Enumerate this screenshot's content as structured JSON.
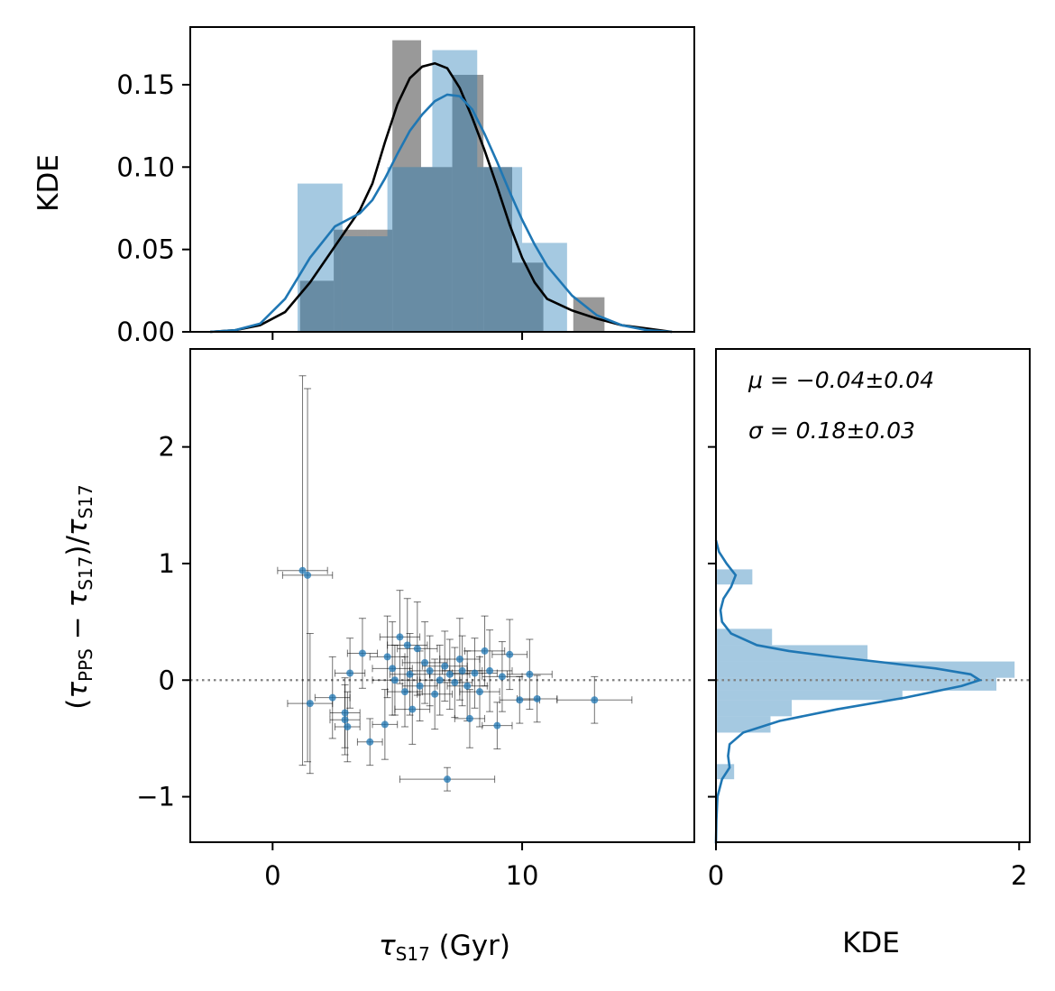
{
  "chart_data": [
    {
      "panel": "top-marginal",
      "type": "bar",
      "ylabel": "KDE",
      "xlim": [
        -3.3,
        16.9
      ],
      "ylim": [
        0,
        0.185
      ],
      "yticks": [
        "0.00",
        "0.05",
        "0.10",
        "0.15"
      ],
      "ytick_values": [
        0.0,
        0.05,
        0.1,
        0.15
      ],
      "xtick_values": [
        0,
        10
      ],
      "series": [
        {
          "color": "#808080",
          "opacity": 0.8,
          "bins": [
            {
              "x0": 1.1,
              "x1": 2.45,
              "y": 0.031
            },
            {
              "x0": 2.45,
              "x1": 3.8,
              "y": 0.062
            },
            {
              "x0": 3.8,
              "x1": 4.8,
              "y": 0.062
            },
            {
              "x0": 4.8,
              "x1": 5.95,
              "y": 0.177
            },
            {
              "x0": 5.95,
              "x1": 7.2,
              "y": 0.1
            },
            {
              "x0": 7.2,
              "x1": 8.45,
              "y": 0.156
            },
            {
              "x0": 8.45,
              "x1": 9.6,
              "y": 0.1
            },
            {
              "x0": 9.6,
              "x1": 10.85,
              "y": 0.042
            },
            {
              "x0": 10.85,
              "x1": 12.05,
              "y": 0.0
            },
            {
              "x0": 12.05,
              "x1": 13.3,
              "y": 0.021
            }
          ]
        },
        {
          "color": "#1f77b4",
          "opacity": 0.4,
          "bins": [
            {
              "x0": 1.0,
              "x1": 2.8,
              "y": 0.09
            },
            {
              "x0": 2.8,
              "x1": 4.6,
              "y": 0.058
            },
            {
              "x0": 4.6,
              "x1": 6.4,
              "y": 0.1
            },
            {
              "x0": 6.4,
              "x1": 8.2,
              "y": 0.171
            },
            {
              "x0": 8.2,
              "x1": 10.0,
              "y": 0.1
            },
            {
              "x0": 10.0,
              "x1": 11.8,
              "y": 0.054
            }
          ]
        }
      ],
      "kde_lines": [
        {
          "color": "#000000",
          "points": [
            [
              -2.5,
              0.0
            ],
            [
              -1.5,
              0.001
            ],
            [
              -0.5,
              0.004
            ],
            [
              0.5,
              0.012
            ],
            [
              1.5,
              0.03
            ],
            [
              2.5,
              0.052
            ],
            [
              3.5,
              0.074
            ],
            [
              4.0,
              0.09
            ],
            [
              4.5,
              0.115
            ],
            [
              5.0,
              0.138
            ],
            [
              5.5,
              0.154
            ],
            [
              6.0,
              0.161
            ],
            [
              6.5,
              0.163
            ],
            [
              7.0,
              0.16
            ],
            [
              7.5,
              0.148
            ],
            [
              8.0,
              0.13
            ],
            [
              8.5,
              0.11
            ],
            [
              9.0,
              0.088
            ],
            [
              9.5,
              0.065
            ],
            [
              10.0,
              0.045
            ],
            [
              10.5,
              0.03
            ],
            [
              11.0,
              0.02
            ],
            [
              12.0,
              0.013
            ],
            [
              13.0,
              0.008
            ],
            [
              14.0,
              0.004
            ],
            [
              15.0,
              0.002
            ],
            [
              16.0,
              0.0
            ]
          ]
        },
        {
          "color": "#1f77b4",
          "points": [
            [
              -2.5,
              0.0
            ],
            [
              -1.5,
              0.001
            ],
            [
              -0.5,
              0.005
            ],
            [
              0.5,
              0.02
            ],
            [
              1.5,
              0.045
            ],
            [
              2.5,
              0.064
            ],
            [
              3.5,
              0.072
            ],
            [
              4.0,
              0.08
            ],
            [
              4.5,
              0.093
            ],
            [
              5.0,
              0.108
            ],
            [
              5.5,
              0.122
            ],
            [
              6.0,
              0.132
            ],
            [
              6.5,
              0.14
            ],
            [
              7.0,
              0.144
            ],
            [
              7.5,
              0.143
            ],
            [
              8.0,
              0.135
            ],
            [
              8.5,
              0.12
            ],
            [
              9.0,
              0.103
            ],
            [
              9.5,
              0.085
            ],
            [
              10.0,
              0.068
            ],
            [
              10.5,
              0.053
            ],
            [
              11.0,
              0.04
            ],
            [
              12.0,
              0.022
            ],
            [
              13.0,
              0.01
            ],
            [
              14.0,
              0.004
            ],
            [
              15.0,
              0.001
            ],
            [
              16.0,
              0.0
            ]
          ]
        }
      ]
    },
    {
      "panel": "main-scatter",
      "type": "scatter",
      "xlabel": "τ_S17 (Gyr)",
      "ylabel": "(τ_PPS − τ_S17)/τ_S17",
      "xlim": [
        -3.3,
        16.9
      ],
      "ylim": [
        -1.39,
        2.84
      ],
      "xticks": [
        "0",
        "10"
      ],
      "xtick_values": [
        0,
        10
      ],
      "yticks": [
        "−1",
        "0",
        "1",
        "2"
      ],
      "ytick_values": [
        -1,
        0,
        1,
        2
      ],
      "reference_line": {
        "y": 0,
        "style": "dotted",
        "color": "#808080"
      },
      "point_color": "#1f77b4",
      "errorbar_color": "#000000",
      "points": [
        {
          "x": 1.2,
          "y": 0.94,
          "xerr": 1.0,
          "yerr": 1.67
        },
        {
          "x": 1.4,
          "y": 0.9,
          "xerr": 1.0,
          "yerr": 1.6
        },
        {
          "x": 1.5,
          "y": -0.2,
          "xerr": 0.9,
          "yerr": 0.6
        },
        {
          "x": 2.4,
          "y": -0.15,
          "xerr": 0.7,
          "yerr": 0.35
        },
        {
          "x": 2.9,
          "y": -0.28,
          "xerr": 0.6,
          "yerr": 0.3
        },
        {
          "x": 2.9,
          "y": -0.34,
          "xerr": 0.6,
          "yerr": 0.3
        },
        {
          "x": 3.0,
          "y": -0.4,
          "xerr": 0.5,
          "yerr": 0.3
        },
        {
          "x": 3.1,
          "y": 0.06,
          "xerr": 0.6,
          "yerr": 0.3
        },
        {
          "x": 3.6,
          "y": 0.23,
          "xerr": 0.6,
          "yerr": 0.3
        },
        {
          "x": 3.9,
          "y": -0.53,
          "xerr": 0.5,
          "yerr": 0.2
        },
        {
          "x": 4.5,
          "y": -0.38,
          "xerr": 0.5,
          "yerr": 0.3
        },
        {
          "x": 4.6,
          "y": 0.2,
          "xerr": 0.7,
          "yerr": 0.35
        },
        {
          "x": 4.8,
          "y": 0.1,
          "xerr": 0.8,
          "yerr": 0.4
        },
        {
          "x": 4.9,
          "y": 0.0,
          "xerr": 0.9,
          "yerr": 0.3
        },
        {
          "x": 5.1,
          "y": 0.37,
          "xerr": 0.8,
          "yerr": 0.4
        },
        {
          "x": 5.3,
          "y": -0.1,
          "xerr": 0.7,
          "yerr": 0.3
        },
        {
          "x": 5.4,
          "y": 0.3,
          "xerr": 0.8,
          "yerr": 0.4
        },
        {
          "x": 5.5,
          "y": 0.05,
          "xerr": 0.8,
          "yerr": 0.35
        },
        {
          "x": 5.6,
          "y": -0.25,
          "xerr": 0.7,
          "yerr": 0.3
        },
        {
          "x": 5.8,
          "y": 0.27,
          "xerr": 0.8,
          "yerr": 0.4
        },
        {
          "x": 5.9,
          "y": -0.05,
          "xerr": 0.7,
          "yerr": 0.3
        },
        {
          "x": 6.1,
          "y": 0.15,
          "xerr": 0.9,
          "yerr": 0.35
        },
        {
          "x": 6.3,
          "y": 0.08,
          "xerr": 0.8,
          "yerr": 0.3
        },
        {
          "x": 6.5,
          "y": -0.12,
          "xerr": 0.7,
          "yerr": 0.3
        },
        {
          "x": 6.7,
          "y": 0.0,
          "xerr": 0.8,
          "yerr": 0.3
        },
        {
          "x": 6.9,
          "y": 0.12,
          "xerr": 0.9,
          "yerr": 0.3
        },
        {
          "x": 7.0,
          "y": -0.85,
          "xerr": 1.9,
          "yerr": 0.1
        },
        {
          "x": 7.1,
          "y": 0.05,
          "xerr": 0.8,
          "yerr": 0.3
        },
        {
          "x": 7.3,
          "y": -0.02,
          "xerr": 0.7,
          "yerr": 0.3
        },
        {
          "x": 7.5,
          "y": 0.18,
          "xerr": 0.8,
          "yerr": 0.35
        },
        {
          "x": 7.6,
          "y": 0.08,
          "xerr": 0.8,
          "yerr": 0.3
        },
        {
          "x": 7.8,
          "y": -0.05,
          "xerr": 0.8,
          "yerr": 0.3
        },
        {
          "x": 7.9,
          "y": -0.33,
          "xerr": 0.6,
          "yerr": 0.25
        },
        {
          "x": 8.1,
          "y": 0.06,
          "xerr": 0.9,
          "yerr": 0.3
        },
        {
          "x": 8.3,
          "y": -0.1,
          "xerr": 0.8,
          "yerr": 0.3
        },
        {
          "x": 8.5,
          "y": 0.25,
          "xerr": 0.8,
          "yerr": 0.3
        },
        {
          "x": 8.7,
          "y": 0.08,
          "xerr": 0.9,
          "yerr": 0.35
        },
        {
          "x": 9.0,
          "y": -0.39,
          "xerr": 0.6,
          "yerr": 0.2
        },
        {
          "x": 9.2,
          "y": 0.03,
          "xerr": 0.8,
          "yerr": 0.3
        },
        {
          "x": 9.5,
          "y": 0.22,
          "xerr": 0.7,
          "yerr": 0.3
        },
        {
          "x": 9.9,
          "y": -0.17,
          "xerr": 0.8,
          "yerr": 0.2
        },
        {
          "x": 10.3,
          "y": 0.05,
          "xerr": 0.9,
          "yerr": 0.3
        },
        {
          "x": 10.6,
          "y": -0.16,
          "xerr": 0.8,
          "yerr": 0.2
        },
        {
          "x": 12.9,
          "y": -0.17,
          "xerr": 1.5,
          "yerr": 0.2
        }
      ]
    },
    {
      "panel": "right-marginal",
      "type": "bar",
      "orientation": "horizontal",
      "xlabel": "KDE",
      "xlim": [
        0,
        2.07
      ],
      "ylim": [
        -1.39,
        2.84
      ],
      "xticks": [
        "0",
        "2"
      ],
      "xtick_values": [
        0,
        2
      ],
      "ytick_values": [
        -1,
        0,
        1,
        2
      ],
      "annotations": [
        "μ = −0.04±0.04",
        "σ = 0.18±0.03"
      ],
      "reference_line": {
        "y": 0,
        "style": "dotted",
        "color": "#808080"
      },
      "bins": [
        {
          "y0": -0.85,
          "y1": -0.72,
          "x": 0.12
        },
        {
          "y0": -0.72,
          "y1": -0.45,
          "x": 0.0
        },
        {
          "y0": -0.45,
          "y1": -0.31,
          "x": 0.36
        },
        {
          "y0": -0.31,
          "y1": -0.17,
          "x": 0.5
        },
        {
          "y0": -0.17,
          "y1": -0.09,
          "x": 1.23
        },
        {
          "y0": -0.09,
          "y1": 0.02,
          "x": 1.85
        },
        {
          "y0": 0.02,
          "y1": 0.16,
          "x": 1.97
        },
        {
          "y0": 0.16,
          "y1": 0.3,
          "x": 1.0
        },
        {
          "y0": 0.3,
          "y1": 0.44,
          "x": 0.37
        },
        {
          "y0": 0.44,
          "y1": 0.82,
          "x": 0.0
        },
        {
          "y0": 0.82,
          "y1": 0.95,
          "x": 0.24
        }
      ],
      "kde_line": {
        "color": "#1f77b4",
        "points": [
          [
            -1.4,
            0.0
          ],
          [
            -1.2,
            0.003
          ],
          [
            -1.0,
            0.01
          ],
          [
            -0.85,
            0.04
          ],
          [
            -0.75,
            0.09
          ],
          [
            -0.65,
            0.08
          ],
          [
            -0.55,
            0.09
          ],
          [
            -0.45,
            0.18
          ],
          [
            -0.35,
            0.42
          ],
          [
            -0.25,
            0.8
          ],
          [
            -0.15,
            1.25
          ],
          [
            -0.05,
            1.62
          ],
          [
            0.0,
            1.74
          ],
          [
            0.05,
            1.68
          ],
          [
            0.1,
            1.45
          ],
          [
            0.15,
            1.12
          ],
          [
            0.2,
            0.78
          ],
          [
            0.25,
            0.48
          ],
          [
            0.3,
            0.27
          ],
          [
            0.4,
            0.1
          ],
          [
            0.5,
            0.04
          ],
          [
            0.6,
            0.03
          ],
          [
            0.7,
            0.05
          ],
          [
            0.8,
            0.1
          ],
          [
            0.9,
            0.13
          ],
          [
            1.0,
            0.07
          ],
          [
            1.1,
            0.02
          ],
          [
            1.2,
            0.0
          ]
        ]
      }
    }
  ]
}
